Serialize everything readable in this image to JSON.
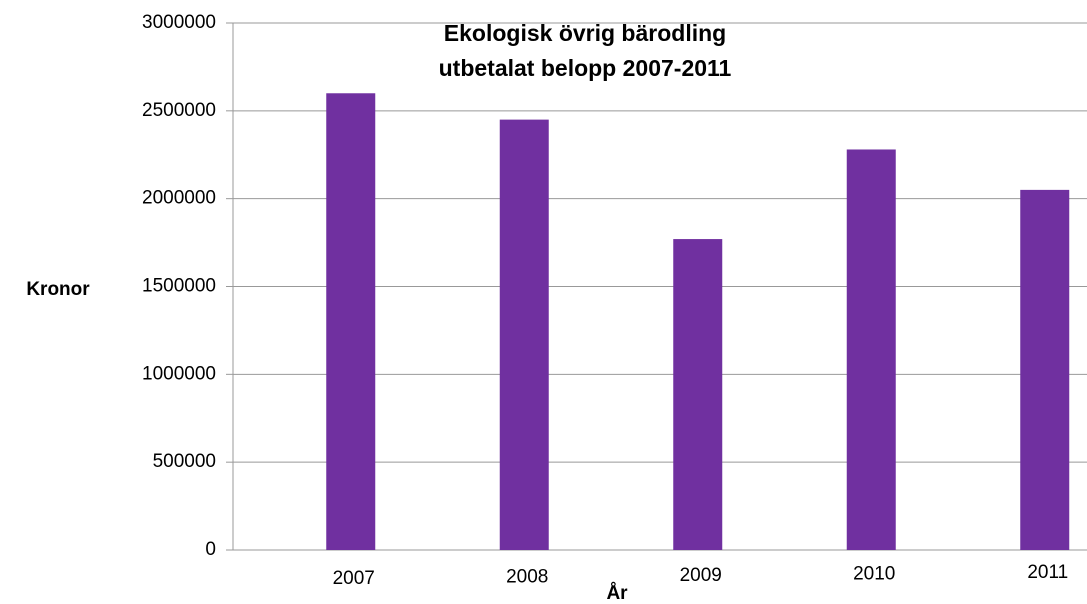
{
  "chart_data": {
    "type": "bar",
    "title": [
      "Ekologisk övrig bärodling",
      "utbetalat belopp 2007-2011"
    ],
    "x_label": "År",
    "y_label": "Kronor",
    "categories": [
      "2007",
      "2008",
      "2009",
      "2010",
      "2011"
    ],
    "values": [
      2600000,
      2450000,
      1770000,
      2280000,
      2050000
    ],
    "color": "#7030a0",
    "ylim": [
      0,
      3000000
    ],
    "yticks": [
      0,
      500000,
      1000000,
      1500000,
      2000000,
      2500000,
      3000000
    ],
    "grid": true
  }
}
